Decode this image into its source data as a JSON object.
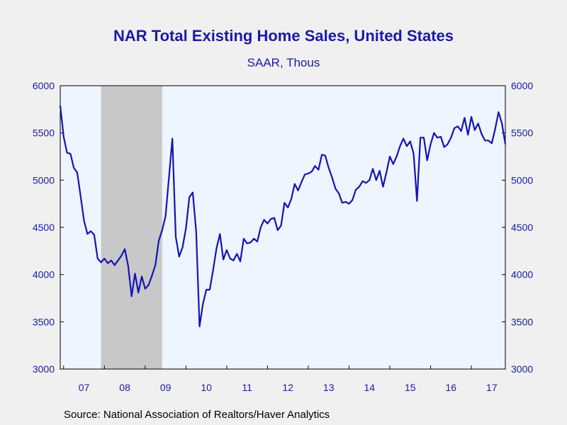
{
  "chart": {
    "title": "NAR Total Existing Home Sales, United States",
    "subtitle": "SAAR, Thous",
    "source": "Source:  National Association of Realtors/Haver Analytics"
  },
  "colors": {
    "line": "#1414b4",
    "recession": "#c8c8c8",
    "plot_bg": "#eef5ff",
    "text": "#1a1aa6"
  },
  "chart_data": {
    "type": "line",
    "x_tick_labels": [
      "07",
      "08",
      "09",
      "10",
      "11",
      "12",
      "13",
      "14",
      "15",
      "16",
      "17"
    ],
    "ylim": [
      3000,
      6000
    ],
    "y_ticks": [
      3000,
      3500,
      4000,
      4500,
      5000,
      5500,
      6000
    ],
    "y_axis_both_sides": true,
    "grid": false,
    "shaded_recession": {
      "start": "2007-12",
      "end": "2009-06"
    },
    "series": [
      {
        "start": "2006-12",
        "frequency": "monthly",
        "values": [
          5790,
          5460,
          5290,
          5280,
          5130,
          5080,
          4830,
          4570,
          4430,
          4460,
          4420,
          4170,
          4130,
          4170,
          4120,
          4150,
          4100,
          4150,
          4200,
          4270,
          4090,
          3770,
          4010,
          3810,
          3980,
          3850,
          3890,
          3990,
          4100,
          4360,
          4470,
          4620,
          5030,
          5440,
          4400,
          4190,
          4290,
          4490,
          4820,
          4870,
          4460,
          3450,
          3690,
          3840,
          3840,
          4050,
          4280,
          4430,
          4160,
          4260,
          4170,
          4150,
          4220,
          4140,
          4380,
          4330,
          4340,
          4380,
          4350,
          4500,
          4580,
          4540,
          4590,
          4600,
          4470,
          4520,
          4760,
          4710,
          4800,
          4960,
          4890,
          4980,
          5060,
          5070,
          5090,
          5150,
          5110,
          5270,
          5260,
          5130,
          5030,
          4910,
          4860,
          4760,
          4770,
          4750,
          4790,
          4900,
          4930,
          4990,
          4970,
          5000,
          5120,
          5000,
          5100,
          4930,
          5080,
          5250,
          5170,
          5250,
          5360,
          5440,
          5360,
          5410,
          5280,
          4780,
          5450,
          5450,
          5210,
          5380,
          5500,
          5450,
          5460,
          5350,
          5380,
          5450,
          5550,
          5570,
          5520,
          5660,
          5480,
          5670,
          5530,
          5600,
          5490,
          5420,
          5420,
          5390,
          5540,
          5720,
          5600,
          5380
        ]
      }
    ]
  }
}
